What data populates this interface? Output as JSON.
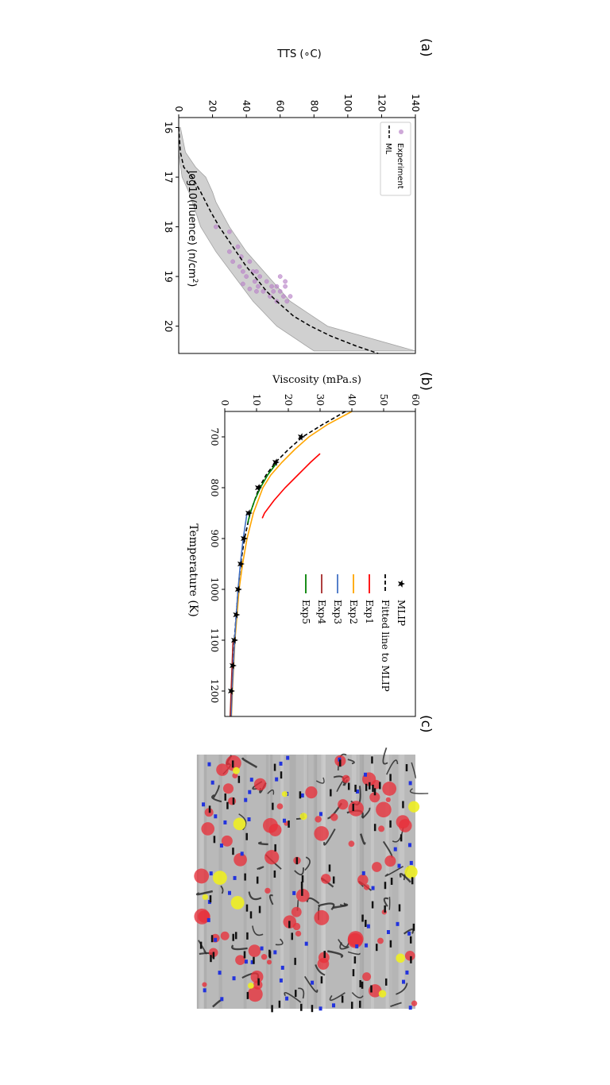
{
  "panels": {
    "a": {
      "label": "(a)",
      "chart_data": {
        "type": "scatter",
        "xlabel": "log10(fluence) (n/cm",
        "xlabel_sup": "2",
        "xlabel_end": ")",
        "ylabel": "TTS ($^\\circ$C)",
        "ylabel_display": "TTS (∘C)",
        "xlim": [
          15.8,
          20.55
        ],
        "ylim": [
          0,
          140
        ],
        "x_ticks": [
          "16",
          "17",
          "18",
          "19",
          "20"
        ],
        "y_ticks": [
          "0",
          "20",
          "40",
          "60",
          "80",
          "100",
          "120",
          "140"
        ],
        "legend": [
          "Experiment",
          "ML"
        ],
        "legend_position": "upper-left",
        "series": [
          {
            "name": "Experiment",
            "kind": "scatter",
            "color": "#b983c7",
            "points": [
              [
                18.0,
                22
              ],
              [
                18.1,
                30
              ],
              [
                18.4,
                35
              ],
              [
                18.5,
                30
              ],
              [
                18.6,
                37
              ],
              [
                18.7,
                32
              ],
              [
                18.7,
                42
              ],
              [
                18.8,
                36
              ],
              [
                18.9,
                38
              ],
              [
                18.9,
                44
              ],
              [
                19.0,
                40
              ],
              [
                19.0,
                48
              ],
              [
                19.1,
                45
              ],
              [
                19.1,
                52
              ],
              [
                19.2,
                47
              ],
              [
                19.2,
                55
              ],
              [
                19.2,
                58
              ],
              [
                19.3,
                50
              ],
              [
                19.3,
                56
              ],
              [
                19.3,
                60
              ],
              [
                19.4,
                54
              ],
              [
                19.4,
                62
              ],
              [
                19.4,
                66
              ],
              [
                19.5,
                58
              ],
              [
                19.5,
                64
              ],
              [
                19.0,
                60
              ],
              [
                19.1,
                63
              ],
              [
                19.2,
                63
              ],
              [
                18.9,
                46
              ],
              [
                19.3,
                46
              ],
              [
                19.15,
                38
              ],
              [
                19.25,
                42
              ]
            ]
          },
          {
            "name": "ML",
            "kind": "line",
            "color": "#000000",
            "dashed": true,
            "points": [
              [
                16.0,
                0
              ],
              [
                16.5,
                1
              ],
              [
                16.8,
                3
              ],
              [
                17.0,
                8
              ],
              [
                17.3,
                13
              ],
              [
                17.5,
                16
              ],
              [
                17.7,
                19
              ],
              [
                18.0,
                24
              ],
              [
                18.3,
                30
              ],
              [
                18.5,
                34
              ],
              [
                18.8,
                40
              ],
              [
                19.0,
                45
              ],
              [
                19.3,
                52
              ],
              [
                19.5,
                58
              ],
              [
                19.8,
                68
              ],
              [
                20.0,
                78
              ],
              [
                20.2,
                90
              ],
              [
                20.4,
                105
              ],
              [
                20.55,
                118
              ]
            ]
          },
          {
            "name": "band",
            "kind": "band",
            "color": "#cccccc",
            "upper": [
              [
                16.0,
                1
              ],
              [
                16.5,
                4
              ],
              [
                16.8,
                10
              ],
              [
                17.0,
                16
              ],
              [
                17.3,
                20
              ],
              [
                17.5,
                22
              ],
              [
                18.0,
                30
              ],
              [
                18.5,
                40
              ],
              [
                19.0,
                53
              ],
              [
                19.5,
                66
              ],
              [
                20.0,
                88
              ],
              [
                20.5,
                140
              ]
            ],
            "lower": [
              [
                16.0,
                -1
              ],
              [
                16.5,
                0
              ],
              [
                17.0,
                2
              ],
              [
                17.3,
                6
              ],
              [
                17.5,
                8
              ],
              [
                18.0,
                13
              ],
              [
                18.5,
                22
              ],
              [
                19.0,
                33
              ],
              [
                19.5,
                44
              ],
              [
                20.0,
                58
              ],
              [
                20.5,
                80
              ]
            ]
          }
        ]
      }
    },
    "b": {
      "label": "(b)",
      "chart_data": {
        "type": "line",
        "xlabel": "Temperature (K)",
        "ylabel": "Viscosity (mPa.s)",
        "xlim": [
          650,
          1250
        ],
        "ylim": [
          0,
          60
        ],
        "x_ticks": [
          "700",
          "800",
          "900",
          "1000",
          "1100",
          "1200"
        ],
        "y_ticks": [
          "0",
          "10",
          "20",
          "30",
          "40",
          "50",
          "60"
        ],
        "legend_position": "lower-right",
        "series": [
          {
            "name": "MLIP",
            "kind": "scatter",
            "color": "#000000",
            "marker": "star",
            "points": [
              [
                700,
                24.0
              ],
              [
                750,
                16.0
              ],
              [
                800,
                10.5
              ],
              [
                850,
                7.5
              ],
              [
                900,
                6.0
              ],
              [
                950,
                5.0
              ],
              [
                1000,
                4.2
              ],
              [
                1050,
                3.6
              ],
              [
                1100,
                3.0
              ],
              [
                1150,
                2.5
              ],
              [
                1200,
                2.0
              ]
            ]
          },
          {
            "name": "Fitted line to MLIP",
            "kind": "line",
            "color": "#000000",
            "dashed": true,
            "points": [
              [
                650,
                38.0
              ],
              [
                675,
                31.0
              ],
              [
                700,
                24.5
              ],
              [
                725,
                20.0
              ],
              [
                750,
                16.0
              ],
              [
                775,
                13.0
              ],
              [
                800,
                10.8
              ],
              [
                850,
                8.0
              ],
              [
                900,
                6.2
              ],
              [
                950,
                5.0
              ],
              [
                1000,
                4.2
              ],
              [
                1050,
                3.6
              ],
              [
                1100,
                3.0
              ],
              [
                1150,
                2.6
              ],
              [
                1200,
                2.2
              ],
              [
                1250,
                1.9
              ]
            ]
          },
          {
            "name": "Exp1",
            "kind": "line",
            "color": "#ff0000",
            "points": [
              [
                733,
                30.0
              ],
              [
                750,
                27.0
              ],
              [
                775,
                23.0
              ],
              [
                800,
                19.0
              ],
              [
                825,
                15.5
              ],
              [
                850,
                12.5
              ],
              [
                860,
                11.8
              ]
            ]
          },
          {
            "name": "Exp2",
            "kind": "line",
            "color": "#ffa500",
            "points": [
              [
                650,
                40.0
              ],
              [
                675,
                32.5
              ],
              [
                700,
                26.5
              ],
              [
                725,
                22.0
              ],
              [
                750,
                18.0
              ],
              [
                775,
                14.5
              ],
              [
                800,
                12.0
              ],
              [
                850,
                9.0
              ],
              [
                900,
                7.0
              ],
              [
                950,
                5.6
              ],
              [
                1000,
                4.5
              ],
              [
                1100,
                3.2
              ],
              [
                1200,
                2.4
              ],
              [
                1250,
                2.1
              ]
            ]
          },
          {
            "name": "Exp3",
            "kind": "line",
            "color": "#4472c4",
            "points": [
              [
                850,
                7.0
              ],
              [
                900,
                5.8
              ],
              [
                950,
                4.9
              ],
              [
                1000,
                4.2
              ],
              [
                1050,
                3.6
              ],
              [
                1100,
                3.1
              ],
              [
                1150,
                2.7
              ],
              [
                1200,
                2.3
              ],
              [
                1250,
                2.0
              ]
            ]
          },
          {
            "name": "Exp4",
            "kind": "line",
            "color": "#a52a2a",
            "points": [
              [
                1100,
                2.6
              ],
              [
                1150,
                2.3
              ],
              [
                1200,
                2.0
              ],
              [
                1250,
                1.7
              ]
            ]
          },
          {
            "name": "Exp5",
            "kind": "line",
            "color": "#008000",
            "points": [
              [
                750,
                16.5
              ],
              [
                775,
                13.5
              ],
              [
                800,
                11.2
              ],
              [
                825,
                9.4
              ],
              [
                850,
                8.0
              ],
              [
                870,
                7.2
              ]
            ]
          }
        ]
      }
    },
    "c": {
      "label": "(c)"
    }
  }
}
